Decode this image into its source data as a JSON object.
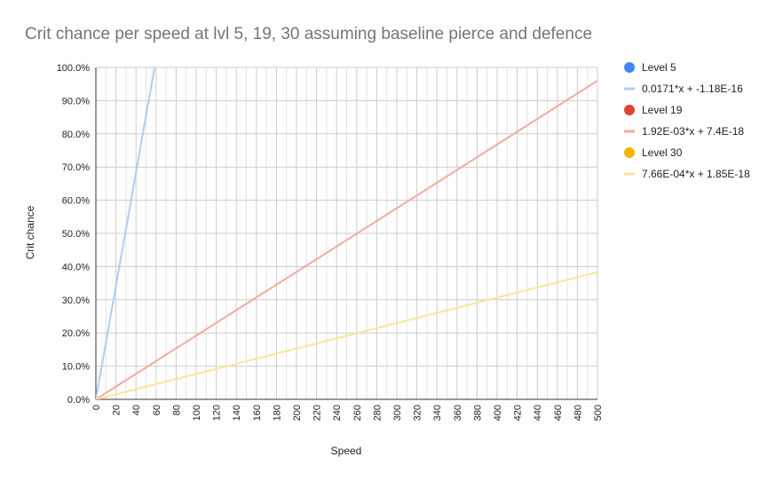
{
  "chart_data": {
    "type": "scatter",
    "title": "Crit chance per speed at lvl 5, 19, 30 assuming baseline pierce and defence",
    "xlabel": "Speed",
    "ylabel": "Crit chance",
    "xlim": [
      0,
      500
    ],
    "ylim": [
      0,
      1
    ],
    "x_ticks": [
      0,
      20,
      40,
      60,
      80,
      100,
      120,
      140,
      160,
      180,
      200,
      220,
      240,
      260,
      280,
      300,
      320,
      340,
      360,
      380,
      400,
      420,
      440,
      460,
      480,
      500
    ],
    "y_ticks": [
      "0.0%",
      "10.0%",
      "20.0%",
      "30.0%",
      "40.0%",
      "50.0%",
      "60.0%",
      "70.0%",
      "80.0%",
      "90.0%",
      "100.0%"
    ],
    "grid": true,
    "legend_position": "right",
    "series": [
      {
        "name": "Level 5",
        "color": "#4285f4",
        "trendline": {
          "label": "0.0171*x + -1.18E-16",
          "slope": 0.0171,
          "intercept": 0,
          "color": "#aecbfa"
        }
      },
      {
        "name": "Level 19",
        "color": "#db4437",
        "trendline": {
          "label": "1.92E-03*x + 7.4E-18",
          "slope": 0.00192,
          "intercept": 0,
          "color": "#f4aaa4"
        }
      },
      {
        "name": "Level 30",
        "color": "#f4b400",
        "trendline": {
          "label": "7.66E-04*x + 1.85E-18",
          "slope": 0.000766,
          "intercept": 0,
          "color": "#fce49a"
        }
      }
    ]
  }
}
